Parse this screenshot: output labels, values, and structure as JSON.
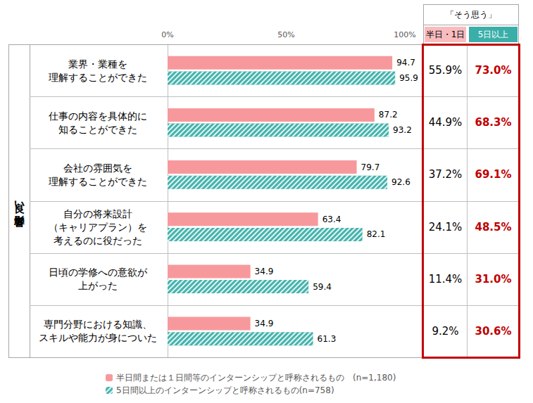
{
  "chart_data": {
    "type": "bar",
    "orientation": "horizontal",
    "categories": [
      "業界・業種を\n理解することができた",
      "仕事の内容を具体的に\n知ることができた",
      "会社の雰囲気を\n理解することができた",
      "自分の将来設計\n（キャリアプラン）を\n考えるのに役だった",
      "日頃の学修への意欲が\n上がった",
      "専門分野における知識、\nスキルや能力が身についた"
    ],
    "series": [
      {
        "name": "半日間または１日間等のインターンシップと呼称されるもの　(n=1,180)",
        "color": "#f7999c",
        "values": [
          94.7,
          87.2,
          79.7,
          63.4,
          34.9,
          34.9
        ]
      },
      {
        "name": "5日間以上のインターンシップと呼称されるもの(n=758)",
        "color": "#45b3ad",
        "values": [
          95.9,
          93.2,
          92.6,
          82.1,
          59.4,
          61.3
        ]
      }
    ],
    "xlim": [
      0,
      100
    ],
    "xticks": [
      {
        "value": 0,
        "label": "0%"
      },
      {
        "value": 50,
        "label": "50%"
      },
      {
        "value": 100,
        "label": "100%"
      }
    ],
    "grid": false,
    "data_labels": true,
    "legend": "bottom",
    "row_group": "良い影響",
    "side_table": {
      "title": "「そう思う」",
      "columns": [
        {
          "header": "半日・1日",
          "color": "#f9bcbe",
          "value_color": "#000000",
          "values": [
            55.9,
            44.9,
            37.2,
            24.1,
            11.4,
            9.2
          ],
          "value_labels": [
            "55.9%",
            "44.9%",
            "37.2%",
            "24.1%",
            "11.4%",
            "9.2%"
          ]
        },
        {
          "header": "5日以上",
          "color": "#3aaea9",
          "value_color": "#c00000",
          "values": [
            73.0,
            68.3,
            69.1,
            48.5,
            31.0,
            30.6
          ],
          "value_labels": [
            "73.0%",
            "68.3%",
            "69.1%",
            "48.5%",
            "31.0%",
            "30.6%"
          ]
        }
      ]
    }
  }
}
